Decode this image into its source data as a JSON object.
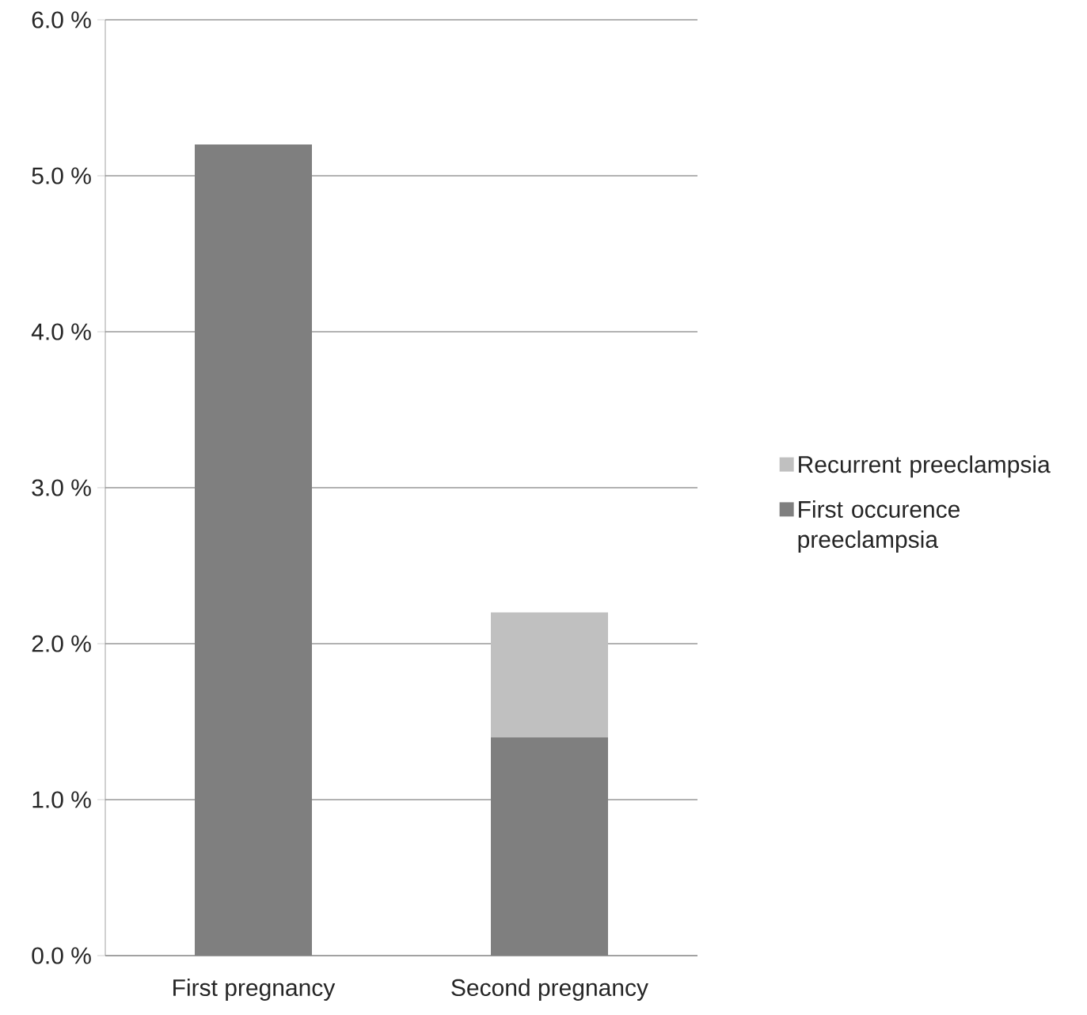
{
  "chart_data": {
    "type": "bar",
    "stacked": true,
    "categories": [
      "First pregnancy",
      "Second pregnancy"
    ],
    "series": [
      {
        "name": "First occurence preeclampsia",
        "color": "#7f7f7f",
        "values": [
          5.2,
          1.4
        ]
      },
      {
        "name": "Recurrent preeclampsia",
        "color": "#c0c0c0",
        "values": [
          0,
          0.8
        ]
      }
    ],
    "ylim": [
      0,
      6
    ],
    "yticks": [
      {
        "value": 0,
        "label": "0.0 %"
      },
      {
        "value": 1,
        "label": "1.0 %"
      },
      {
        "value": 2,
        "label": "2.0 %"
      },
      {
        "value": 3,
        "label": "3.0 %"
      },
      {
        "value": 4,
        "label": "4.0 %"
      },
      {
        "value": 5,
        "label": "5.0 %"
      },
      {
        "value": 6,
        "label": "6.0 %"
      }
    ],
    "grid": "y",
    "legend": "right"
  }
}
